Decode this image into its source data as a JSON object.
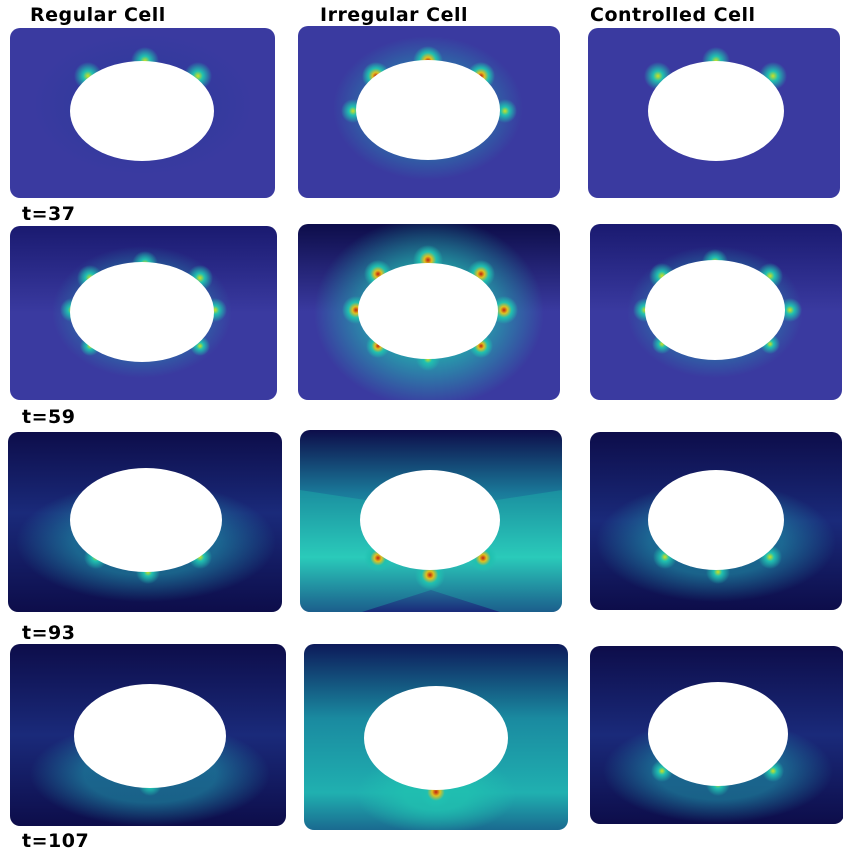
{
  "columns": [
    {
      "title": "Regular Cell"
    },
    {
      "title": "Irregular Cell"
    },
    {
      "title": "Controlled Cell"
    }
  ],
  "rows": [
    {
      "label": "t=37"
    },
    {
      "label": "t=59"
    },
    {
      "label": "t=93"
    },
    {
      "label": "t=107"
    }
  ],
  "colors": {
    "background_low": "#3a3aa0",
    "background_dark": "#0d0d4a",
    "mid_teal": "#1fc0c0",
    "hot_yellow": "#e0d020",
    "hot_red": "#c02010",
    "hole": "#ffffff"
  }
}
